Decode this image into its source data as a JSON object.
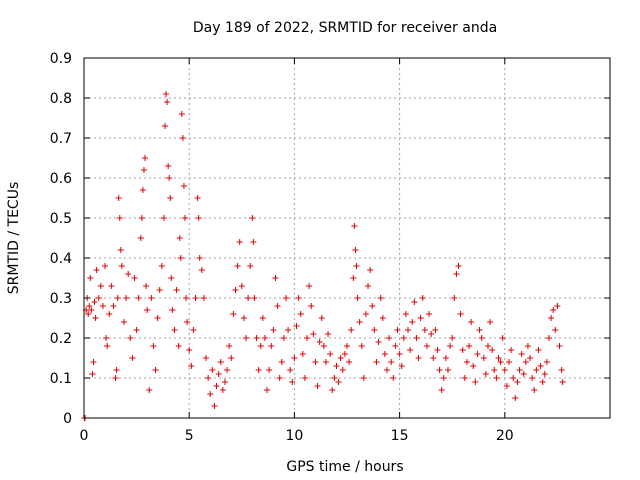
{
  "chart_data": {
    "type": "scatter",
    "title": "Day 189 of 2022, SRMTID for receiver anda",
    "xlabel": "GPS time / hours",
    "ylabel": "SRMTID / TECUs",
    "xlim": [
      0,
      25
    ],
    "ylim": [
      0,
      0.9
    ],
    "xticks": [
      0,
      5,
      10,
      15,
      20
    ],
    "xtick_labels": [
      "0",
      "5",
      "10",
      "15",
      "20"
    ],
    "yticks": [
      0,
      0.1,
      0.2,
      0.3,
      0.4,
      0.5,
      0.6,
      0.7,
      0.8,
      0.9
    ],
    "ytick_labels": [
      "0",
      "0.1",
      "0.2",
      "0.3",
      "0.4",
      "0.5",
      "0.6",
      "0.7",
      "0.8",
      "0.9"
    ],
    "grid": true,
    "marker": "plus",
    "color": "#e00000",
    "series": [
      {
        "name": "SRMTID",
        "points": [
          [
            0.02,
            0.0
          ],
          [
            0.05,
            0.0
          ],
          [
            0.1,
            0.27
          ],
          [
            0.15,
            0.3
          ],
          [
            0.2,
            0.26
          ],
          [
            0.25,
            0.28
          ],
          [
            0.3,
            0.35
          ],
          [
            0.35,
            0.27
          ],
          [
            0.4,
            0.11
          ],
          [
            0.45,
            0.14
          ],
          [
            0.5,
            0.29
          ],
          [
            0.55,
            0.25
          ],
          [
            0.6,
            0.37
          ],
          [
            0.7,
            0.3
          ],
          [
            0.8,
            0.33
          ],
          [
            0.9,
            0.28
          ],
          [
            1.0,
            0.38
          ],
          [
            1.05,
            0.2
          ],
          [
            1.1,
            0.18
          ],
          [
            1.2,
            0.26
          ],
          [
            1.3,
            0.33
          ],
          [
            1.4,
            0.28
          ],
          [
            1.5,
            0.1
          ],
          [
            1.55,
            0.12
          ],
          [
            1.6,
            0.3
          ],
          [
            1.65,
            0.55
          ],
          [
            1.7,
            0.5
          ],
          [
            1.75,
            0.42
          ],
          [
            1.8,
            0.38
          ],
          [
            1.9,
            0.24
          ],
          [
            2.0,
            0.3
          ],
          [
            2.1,
            0.36
          ],
          [
            2.2,
            0.2
          ],
          [
            2.3,
            0.15
          ],
          [
            2.4,
            0.35
          ],
          [
            2.5,
            0.22
          ],
          [
            2.6,
            0.3
          ],
          [
            2.7,
            0.45
          ],
          [
            2.75,
            0.5
          ],
          [
            2.8,
            0.57
          ],
          [
            2.85,
            0.62
          ],
          [
            2.9,
            0.65
          ],
          [
            2.95,
            0.33
          ],
          [
            3.0,
            0.27
          ],
          [
            3.1,
            0.07
          ],
          [
            3.2,
            0.3
          ],
          [
            3.3,
            0.18
          ],
          [
            3.4,
            0.12
          ],
          [
            3.5,
            0.25
          ],
          [
            3.6,
            0.32
          ],
          [
            3.7,
            0.38
          ],
          [
            3.8,
            0.5
          ],
          [
            3.85,
            0.73
          ],
          [
            3.9,
            0.81
          ],
          [
            3.95,
            0.79
          ],
          [
            4.0,
            0.63
          ],
          [
            4.05,
            0.6
          ],
          [
            4.1,
            0.55
          ],
          [
            4.15,
            0.35
          ],
          [
            4.2,
            0.27
          ],
          [
            4.3,
            0.22
          ],
          [
            4.4,
            0.32
          ],
          [
            4.5,
            0.18
          ],
          [
            4.55,
            0.45
          ],
          [
            4.6,
            0.4
          ],
          [
            4.65,
            0.76
          ],
          [
            4.7,
            0.7
          ],
          [
            4.75,
            0.58
          ],
          [
            4.8,
            0.5
          ],
          [
            4.85,
            0.3
          ],
          [
            4.9,
            0.24
          ],
          [
            5.0,
            0.17
          ],
          [
            5.1,
            0.13
          ],
          [
            5.2,
            0.22
          ],
          [
            5.3,
            0.3
          ],
          [
            5.4,
            0.55
          ],
          [
            5.45,
            0.5
          ],
          [
            5.5,
            0.4
          ],
          [
            5.6,
            0.37
          ],
          [
            5.7,
            0.3
          ],
          [
            5.8,
            0.15
          ],
          [
            5.9,
            0.1
          ],
          [
            6.0,
            0.06
          ],
          [
            6.1,
            0.12
          ],
          [
            6.2,
            0.03
          ],
          [
            6.3,
            0.08
          ],
          [
            6.4,
            0.11
          ],
          [
            6.5,
            0.14
          ],
          [
            6.6,
            0.07
          ],
          [
            6.7,
            0.09
          ],
          [
            6.8,
            0.12
          ],
          [
            6.9,
            0.18
          ],
          [
            7.0,
            0.15
          ],
          [
            7.1,
            0.26
          ],
          [
            7.2,
            0.32
          ],
          [
            7.3,
            0.38
          ],
          [
            7.4,
            0.44
          ],
          [
            7.5,
            0.33
          ],
          [
            7.6,
            0.25
          ],
          [
            7.7,
            0.2
          ],
          [
            7.8,
            0.3
          ],
          [
            7.9,
            0.38
          ],
          [
            8.0,
            0.5
          ],
          [
            8.05,
            0.44
          ],
          [
            8.1,
            0.3
          ],
          [
            8.2,
            0.2
          ],
          [
            8.3,
            0.12
          ],
          [
            8.4,
            0.18
          ],
          [
            8.5,
            0.25
          ],
          [
            8.6,
            0.2
          ],
          [
            8.7,
            0.07
          ],
          [
            8.8,
            0.12
          ],
          [
            8.9,
            0.18
          ],
          [
            9.0,
            0.22
          ],
          [
            9.1,
            0.35
          ],
          [
            9.2,
            0.28
          ],
          [
            9.3,
            0.1
          ],
          [
            9.4,
            0.14
          ],
          [
            9.5,
            0.2
          ],
          [
            9.6,
            0.3
          ],
          [
            9.7,
            0.22
          ],
          [
            9.8,
            0.12
          ],
          [
            9.9,
            0.09
          ],
          [
            10.0,
            0.15
          ],
          [
            10.1,
            0.23
          ],
          [
            10.2,
            0.3
          ],
          [
            10.3,
            0.26
          ],
          [
            10.4,
            0.16
          ],
          [
            10.5,
            0.1
          ],
          [
            10.6,
            0.2
          ],
          [
            10.7,
            0.33
          ],
          [
            10.8,
            0.28
          ],
          [
            10.9,
            0.21
          ],
          [
            11.0,
            0.14
          ],
          [
            11.1,
            0.08
          ],
          [
            11.2,
            0.19
          ],
          [
            11.3,
            0.25
          ],
          [
            11.4,
            0.18
          ],
          [
            11.5,
            0.14
          ],
          [
            11.6,
            0.21
          ],
          [
            11.7,
            0.16
          ],
          [
            11.8,
            0.07
          ],
          [
            11.9,
            0.1
          ],
          [
            12.0,
            0.13
          ],
          [
            12.1,
            0.09
          ],
          [
            12.2,
            0.15
          ],
          [
            12.3,
            0.12
          ],
          [
            12.4,
            0.16
          ],
          [
            12.5,
            0.18
          ],
          [
            12.6,
            0.14
          ],
          [
            12.7,
            0.22
          ],
          [
            12.8,
            0.35
          ],
          [
            12.85,
            0.48
          ],
          [
            12.9,
            0.42
          ],
          [
            12.95,
            0.38
          ],
          [
            13.0,
            0.3
          ],
          [
            13.1,
            0.24
          ],
          [
            13.2,
            0.18
          ],
          [
            13.3,
            0.1
          ],
          [
            13.4,
            0.26
          ],
          [
            13.5,
            0.33
          ],
          [
            13.6,
            0.37
          ],
          [
            13.7,
            0.28
          ],
          [
            13.8,
            0.22
          ],
          [
            13.9,
            0.14
          ],
          [
            14.0,
            0.19
          ],
          [
            14.1,
            0.3
          ],
          [
            14.2,
            0.25
          ],
          [
            14.3,
            0.16
          ],
          [
            14.4,
            0.12
          ],
          [
            14.5,
            0.2
          ],
          [
            14.6,
            0.14
          ],
          [
            14.7,
            0.1
          ],
          [
            14.8,
            0.18
          ],
          [
            14.9,
            0.22
          ],
          [
            15.0,
            0.16
          ],
          [
            15.1,
            0.13
          ],
          [
            15.2,
            0.2
          ],
          [
            15.3,
            0.26
          ],
          [
            15.4,
            0.22
          ],
          [
            15.5,
            0.17
          ],
          [
            15.6,
            0.24
          ],
          [
            15.7,
            0.29
          ],
          [
            15.8,
            0.2
          ],
          [
            15.9,
            0.15
          ],
          [
            16.0,
            0.25
          ],
          [
            16.1,
            0.3
          ],
          [
            16.2,
            0.22
          ],
          [
            16.3,
            0.18
          ],
          [
            16.4,
            0.26
          ],
          [
            16.5,
            0.21
          ],
          [
            16.6,
            0.15
          ],
          [
            16.7,
            0.22
          ],
          [
            16.8,
            0.17
          ],
          [
            16.9,
            0.12
          ],
          [
            17.0,
            0.07
          ],
          [
            17.1,
            0.1
          ],
          [
            17.2,
            0.15
          ],
          [
            17.3,
            0.12
          ],
          [
            17.4,
            0.18
          ],
          [
            17.5,
            0.2
          ],
          [
            17.6,
            0.3
          ],
          [
            17.7,
            0.36
          ],
          [
            17.8,
            0.38
          ],
          [
            17.9,
            0.26
          ],
          [
            18.0,
            0.17
          ],
          [
            18.1,
            0.1
          ],
          [
            18.2,
            0.14
          ],
          [
            18.3,
            0.18
          ],
          [
            18.4,
            0.24
          ],
          [
            18.5,
            0.13
          ],
          [
            18.6,
            0.09
          ],
          [
            18.7,
            0.16
          ],
          [
            18.8,
            0.22
          ],
          [
            18.9,
            0.2
          ],
          [
            19.0,
            0.15
          ],
          [
            19.1,
            0.11
          ],
          [
            19.2,
            0.18
          ],
          [
            19.3,
            0.24
          ],
          [
            19.4,
            0.17
          ],
          [
            19.5,
            0.12
          ],
          [
            19.6,
            0.1
          ],
          [
            19.7,
            0.15
          ],
          [
            19.8,
            0.14
          ],
          [
            19.9,
            0.2
          ],
          [
            20.0,
            0.12
          ],
          [
            20.1,
            0.08
          ],
          [
            20.2,
            0.14
          ],
          [
            20.3,
            0.17
          ],
          [
            20.4,
            0.1
          ],
          [
            20.5,
            0.05
          ],
          [
            20.6,
            0.09
          ],
          [
            20.7,
            0.12
          ],
          [
            20.8,
            0.16
          ],
          [
            20.9,
            0.11
          ],
          [
            21.0,
            0.14
          ],
          [
            21.1,
            0.18
          ],
          [
            21.2,
            0.15
          ],
          [
            21.3,
            0.1
          ],
          [
            21.4,
            0.07
          ],
          [
            21.5,
            0.12
          ],
          [
            21.6,
            0.17
          ],
          [
            21.7,
            0.13
          ],
          [
            21.8,
            0.09
          ],
          [
            21.9,
            0.11
          ],
          [
            22.0,
            0.14
          ],
          [
            22.1,
            0.2
          ],
          [
            22.2,
            0.25
          ],
          [
            22.3,
            0.27
          ],
          [
            22.4,
            0.22
          ],
          [
            22.5,
            0.28
          ],
          [
            22.6,
            0.18
          ],
          [
            22.7,
            0.12
          ],
          [
            22.75,
            0.09
          ]
        ]
      }
    ]
  }
}
